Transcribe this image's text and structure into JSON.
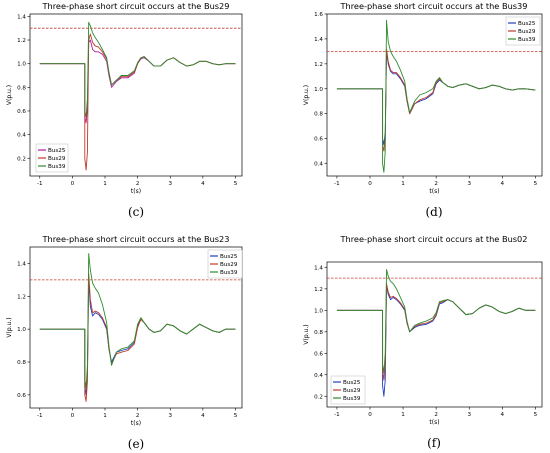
{
  "chart_data": [
    {
      "type": "line",
      "title": "Three-phase short circuit occurs at the Bus29",
      "caption": "(c)",
      "xlabel": "t(s)",
      "ylabel": "V(p.u.)",
      "xlim": [
        -1.3,
        5.2
      ],
      "ylim": [
        0.05,
        1.42
      ],
      "xticks": [
        -1,
        0,
        1,
        2,
        3,
        4,
        5
      ],
      "yticks": [
        0.2,
        0.4,
        0.6,
        0.8,
        1.0,
        1.2,
        1.4
      ],
      "threshold": 1.3,
      "threshold_color": "#c0392b",
      "legend_position": "bottom-left",
      "series": [
        {
          "name": "Bus25",
          "color": "#b01aa0",
          "x": [
            -1,
            0.38,
            0.38,
            0.42,
            0.46,
            0.5,
            0.55,
            0.62,
            0.7,
            0.8,
            0.92,
            1.05,
            1.12,
            1.2,
            1.35,
            1.5,
            1.7,
            1.9,
            2.0,
            2.1,
            2.2,
            2.35,
            2.5,
            2.7,
            2.9,
            3.1,
            3.3,
            3.5,
            3.7,
            3.9,
            4.1,
            4.3,
            4.5,
            4.7,
            5
          ],
          "y": [
            1.0,
            1.0,
            0.55,
            0.5,
            0.62,
            1.18,
            1.2,
            1.12,
            1.1,
            1.1,
            1.08,
            1.02,
            0.9,
            0.8,
            0.85,
            0.88,
            0.88,
            0.92,
            1.0,
            1.04,
            1.05,
            1.02,
            0.98,
            0.98,
            1.03,
            1.05,
            1.01,
            0.98,
            0.99,
            1.02,
            1.02,
            1.0,
            0.99,
            1.0,
            1.0
          ]
        },
        {
          "name": "Bus29",
          "color": "#c0392b",
          "x": [
            -1,
            0.38,
            0.38,
            0.42,
            0.46,
            0.5,
            0.55,
            0.62,
            0.7,
            0.8,
            0.92,
            1.05,
            1.12,
            1.2,
            1.35,
            1.5,
            1.7,
            1.9,
            2.0,
            2.1,
            2.2,
            2.35,
            2.5,
            2.7,
            2.9,
            3.1,
            3.3,
            3.5,
            3.7,
            3.9,
            4.1,
            4.3,
            4.5,
            4.7,
            5
          ],
          "y": [
            1.0,
            1.0,
            0.2,
            0.1,
            0.25,
            1.2,
            1.25,
            1.18,
            1.15,
            1.14,
            1.1,
            1.04,
            0.92,
            0.82,
            0.86,
            0.89,
            0.89,
            0.93,
            1.0,
            1.05,
            1.06,
            1.02,
            0.98,
            0.98,
            1.03,
            1.05,
            1.01,
            0.98,
            0.99,
            1.02,
            1.02,
            1.0,
            0.99,
            1.0,
            1.0
          ]
        },
        {
          "name": "Bus39",
          "color": "#2e8b2e",
          "x": [
            -1,
            0.38,
            0.38,
            0.42,
            0.46,
            0.5,
            0.55,
            0.62,
            0.7,
            0.8,
            0.92,
            1.05,
            1.12,
            1.2,
            1.35,
            1.5,
            1.7,
            1.9,
            2.0,
            2.1,
            2.2,
            2.35,
            2.5,
            2.7,
            2.9,
            3.1,
            3.3,
            3.5,
            3.7,
            3.9,
            4.1,
            4.3,
            4.5,
            4.7,
            5
          ],
          "y": [
            1.0,
            1.0,
            0.6,
            0.55,
            0.7,
            1.35,
            1.32,
            1.26,
            1.22,
            1.18,
            1.12,
            1.05,
            0.93,
            0.82,
            0.86,
            0.9,
            0.9,
            0.94,
            1.01,
            1.05,
            1.06,
            1.02,
            0.98,
            0.98,
            1.03,
            1.05,
            1.01,
            0.98,
            0.99,
            1.02,
            1.02,
            1.0,
            0.99,
            1.0,
            1.0
          ]
        }
      ]
    },
    {
      "type": "line",
      "title": "Three-phase short circuit occurs at the Bus39",
      "caption": "(d)",
      "xlabel": "t(s)",
      "ylabel": "V(p.u.)",
      "xlim": [
        -1.3,
        5.2
      ],
      "ylim": [
        0.3,
        1.6
      ],
      "xticks": [
        -1,
        0,
        1,
        2,
        3,
        4,
        5
      ],
      "yticks": [
        0.4,
        0.6,
        0.8,
        1.0,
        1.2,
        1.4,
        1.6
      ],
      "threshold": 1.3,
      "threshold_color": "#c0392b",
      "legend_position": "top-right",
      "series": [
        {
          "name": "Bus25",
          "color": "#1f3fbf",
          "x": [
            -1,
            0.38,
            0.38,
            0.42,
            0.46,
            0.5,
            0.55,
            0.62,
            0.7,
            0.8,
            0.92,
            1.05,
            1.12,
            1.2,
            1.35,
            1.5,
            1.7,
            1.9,
            2.0,
            2.1,
            2.2,
            2.35,
            2.5,
            2.7,
            2.9,
            3.1,
            3.3,
            3.5,
            3.7,
            3.9,
            4.1,
            4.3,
            4.5,
            4.7,
            5
          ],
          "y": [
            1.0,
            1.0,
            0.6,
            0.55,
            0.65,
            1.3,
            1.2,
            1.14,
            1.12,
            1.12,
            1.08,
            1.02,
            0.9,
            0.8,
            0.88,
            0.9,
            0.92,
            0.96,
            1.04,
            1.07,
            1.05,
            1.02,
            1.01,
            1.03,
            1.04,
            1.02,
            1.0,
            1.01,
            1.03,
            1.02,
            1.0,
            0.99,
            1.0,
            1.0,
            0.99
          ]
        },
        {
          "name": "Bus29",
          "color": "#c0392b",
          "x": [
            -1,
            0.38,
            0.38,
            0.42,
            0.46,
            0.5,
            0.55,
            0.62,
            0.7,
            0.8,
            0.92,
            1.05,
            1.12,
            1.2,
            1.35,
            1.5,
            1.7,
            1.9,
            2.0,
            2.1,
            2.2,
            2.35,
            2.5,
            2.7,
            2.9,
            3.1,
            3.3,
            3.5,
            3.7,
            3.9,
            4.1,
            4.3,
            4.5,
            4.7,
            5
          ],
          "y": [
            1.0,
            1.0,
            0.55,
            0.5,
            0.6,
            1.32,
            1.22,
            1.15,
            1.13,
            1.13,
            1.09,
            1.03,
            0.9,
            0.8,
            0.88,
            0.91,
            0.93,
            0.97,
            1.05,
            1.08,
            1.05,
            1.02,
            1.01,
            1.03,
            1.04,
            1.02,
            1.0,
            1.01,
            1.03,
            1.02,
            1.0,
            0.99,
            1.0,
            1.0,
            0.99
          ]
        },
        {
          "name": "Bus39",
          "color": "#2e8b2e",
          "x": [
            -1,
            0.38,
            0.38,
            0.42,
            0.46,
            0.5,
            0.55,
            0.62,
            0.7,
            0.8,
            0.92,
            1.05,
            1.12,
            1.2,
            1.35,
            1.5,
            1.7,
            1.9,
            2.0,
            2.1,
            2.2,
            2.35,
            2.5,
            2.7,
            2.9,
            3.1,
            3.3,
            3.5,
            3.7,
            3.9,
            4.1,
            4.3,
            4.5,
            4.7,
            5
          ],
          "y": [
            1.0,
            1.0,
            0.4,
            0.33,
            0.5,
            1.55,
            1.38,
            1.3,
            1.26,
            1.22,
            1.15,
            1.06,
            0.92,
            0.81,
            0.9,
            0.95,
            0.97,
            1.0,
            1.06,
            1.09,
            1.05,
            1.02,
            1.01,
            1.03,
            1.04,
            1.02,
            1.0,
            1.01,
            1.03,
            1.02,
            1.0,
            0.99,
            1.0,
            1.0,
            0.99
          ]
        }
      ]
    },
    {
      "type": "line",
      "title": "Three-phase short circuit occurs at the Bus23",
      "caption": "(e)",
      "xlabel": "t(s)",
      "ylabel": "V(p.u.)",
      "xlim": [
        -1.3,
        5.2
      ],
      "ylim": [
        0.52,
        1.5
      ],
      "xticks": [
        -1,
        0,
        1,
        2,
        3,
        4,
        5
      ],
      "yticks": [
        0.6,
        0.8,
        1.0,
        1.2,
        1.4
      ],
      "threshold": 1.3,
      "threshold_color": "#c0392b",
      "legend_position": "top-right",
      "series": [
        {
          "name": "Bus25",
          "color": "#1f3fbf",
          "x": [
            -1,
            0.38,
            0.38,
            0.42,
            0.46,
            0.5,
            0.55,
            0.62,
            0.7,
            0.8,
            0.92,
            1.05,
            1.12,
            1.2,
            1.35,
            1.5,
            1.7,
            1.9,
            2.0,
            2.1,
            2.2,
            2.35,
            2.5,
            2.7,
            2.9,
            3.1,
            3.3,
            3.5,
            3.7,
            3.9,
            4.1,
            4.3,
            4.5,
            4.7,
            5
          ],
          "y": [
            1.0,
            1.0,
            0.65,
            0.6,
            0.72,
            1.3,
            1.14,
            1.08,
            1.1,
            1.09,
            1.06,
            1.0,
            0.88,
            0.8,
            0.86,
            0.87,
            0.88,
            0.92,
            1.02,
            1.06,
            1.04,
            1.0,
            0.98,
            0.99,
            1.03,
            1.02,
            0.99,
            0.97,
            1.0,
            1.03,
            1.01,
            0.99,
            0.98,
            1.0,
            1.0
          ]
        },
        {
          "name": "Bus29",
          "color": "#c0392b",
          "x": [
            -1,
            0.38,
            0.38,
            0.42,
            0.46,
            0.5,
            0.55,
            0.62,
            0.7,
            0.8,
            0.92,
            1.05,
            1.12,
            1.2,
            1.35,
            1.5,
            1.7,
            1.9,
            2.0,
            2.1,
            2.2,
            2.35,
            2.5,
            2.7,
            2.9,
            3.1,
            3.3,
            3.5,
            3.7,
            3.9,
            4.1,
            4.3,
            4.5,
            4.7,
            5
          ],
          "y": [
            1.0,
            1.0,
            0.6,
            0.56,
            0.68,
            1.34,
            1.18,
            1.1,
            1.11,
            1.1,
            1.07,
            1.01,
            0.88,
            0.79,
            0.85,
            0.86,
            0.87,
            0.91,
            1.01,
            1.06,
            1.04,
            1.0,
            0.98,
            0.99,
            1.03,
            1.02,
            0.99,
            0.97,
            1.0,
            1.03,
            1.01,
            0.99,
            0.98,
            1.0,
            1.0
          ]
        },
        {
          "name": "Bus39",
          "color": "#2e8b2e",
          "x": [
            -1,
            0.38,
            0.38,
            0.42,
            0.46,
            0.5,
            0.55,
            0.62,
            0.7,
            0.8,
            0.92,
            1.05,
            1.12,
            1.2,
            1.35,
            1.5,
            1.7,
            1.9,
            2.0,
            2.1,
            2.2,
            2.35,
            2.5,
            2.7,
            2.9,
            3.1,
            3.3,
            3.5,
            3.7,
            3.9,
            4.1,
            4.3,
            4.5,
            4.7,
            5
          ],
          "y": [
            1.0,
            1.0,
            0.7,
            0.64,
            0.78,
            1.46,
            1.36,
            1.28,
            1.25,
            1.22,
            1.15,
            1.04,
            0.9,
            0.78,
            0.86,
            0.88,
            0.89,
            0.93,
            1.03,
            1.07,
            1.04,
            1.0,
            0.98,
            0.99,
            1.03,
            1.02,
            0.99,
            0.97,
            1.0,
            1.03,
            1.01,
            0.99,
            0.98,
            1.0,
            1.0
          ]
        }
      ]
    },
    {
      "type": "line",
      "title": "Three-phase short circuit occurs at the Bus02",
      "caption": "(f)",
      "xlabel": "t(s)",
      "ylabel": "V(p.u.)",
      "xlim": [
        -1.3,
        5.2
      ],
      "ylim": [
        0.1,
        1.45
      ],
      "xticks": [
        -1,
        0,
        1,
        2,
        3,
        4,
        5
      ],
      "yticks": [
        0.2,
        0.4,
        0.6,
        0.8,
        1.0,
        1.2,
        1.4
      ],
      "threshold": 1.3,
      "threshold_color": "#c0392b",
      "legend_position": "bottom-left",
      "series": [
        {
          "name": "Bus25",
          "color": "#1f3fbf",
          "x": [
            -1,
            0.38,
            0.38,
            0.42,
            0.46,
            0.5,
            0.55,
            0.62,
            0.7,
            0.8,
            0.92,
            1.05,
            1.12,
            1.2,
            1.35,
            1.5,
            1.7,
            1.9,
            2.0,
            2.1,
            2.2,
            2.35,
            2.5,
            2.7,
            2.9,
            3.1,
            3.3,
            3.5,
            3.7,
            3.9,
            4.1,
            4.3,
            4.5,
            4.7,
            5
          ],
          "y": [
            1.0,
            1.0,
            0.3,
            0.2,
            0.35,
            1.22,
            1.15,
            1.1,
            1.12,
            1.1,
            1.06,
            1.0,
            0.88,
            0.8,
            0.84,
            0.86,
            0.87,
            0.9,
            0.95,
            1.06,
            1.07,
            1.1,
            1.08,
            1.02,
            0.96,
            0.97,
            1.02,
            1.05,
            1.03,
            0.99,
            0.97,
            0.99,
            1.02,
            1.0,
            1.0
          ]
        },
        {
          "name": "Bus29",
          "color": "#c0392b",
          "x": [
            -1,
            0.38,
            0.38,
            0.42,
            0.46,
            0.5,
            0.55,
            0.62,
            0.7,
            0.8,
            0.92,
            1.05,
            1.12,
            1.2,
            1.35,
            1.5,
            1.7,
            1.9,
            2.0,
            2.1,
            2.2,
            2.35,
            2.5,
            2.7,
            2.9,
            3.1,
            3.3,
            3.5,
            3.7,
            3.9,
            4.1,
            4.3,
            4.5,
            4.7,
            5
          ],
          "y": [
            1.0,
            1.0,
            0.45,
            0.35,
            0.5,
            1.25,
            1.17,
            1.12,
            1.13,
            1.11,
            1.07,
            1.01,
            0.88,
            0.8,
            0.85,
            0.87,
            0.88,
            0.91,
            0.96,
            1.07,
            1.08,
            1.1,
            1.08,
            1.02,
            0.96,
            0.97,
            1.02,
            1.05,
            1.03,
            0.99,
            0.97,
            0.99,
            1.02,
            1.0,
            1.0
          ]
        },
        {
          "name": "Bus39",
          "color": "#2e8b2e",
          "x": [
            -1,
            0.38,
            0.38,
            0.42,
            0.46,
            0.5,
            0.55,
            0.62,
            0.7,
            0.8,
            0.92,
            1.05,
            1.12,
            1.2,
            1.35,
            1.5,
            1.7,
            1.9,
            2.0,
            2.1,
            2.2,
            2.35,
            2.5,
            2.7,
            2.9,
            3.1,
            3.3,
            3.5,
            3.7,
            3.9,
            4.1,
            4.3,
            4.5,
            4.7,
            5
          ],
          "y": [
            1.0,
            1.0,
            0.5,
            0.42,
            0.6,
            1.38,
            1.32,
            1.27,
            1.25,
            1.2,
            1.12,
            1.03,
            0.9,
            0.8,
            0.86,
            0.88,
            0.9,
            0.93,
            0.98,
            1.08,
            1.09,
            1.1,
            1.08,
            1.02,
            0.96,
            0.97,
            1.02,
            1.05,
            1.03,
            0.99,
            0.97,
            0.99,
            1.02,
            1.0,
            1.0
          ]
        }
      ]
    }
  ]
}
